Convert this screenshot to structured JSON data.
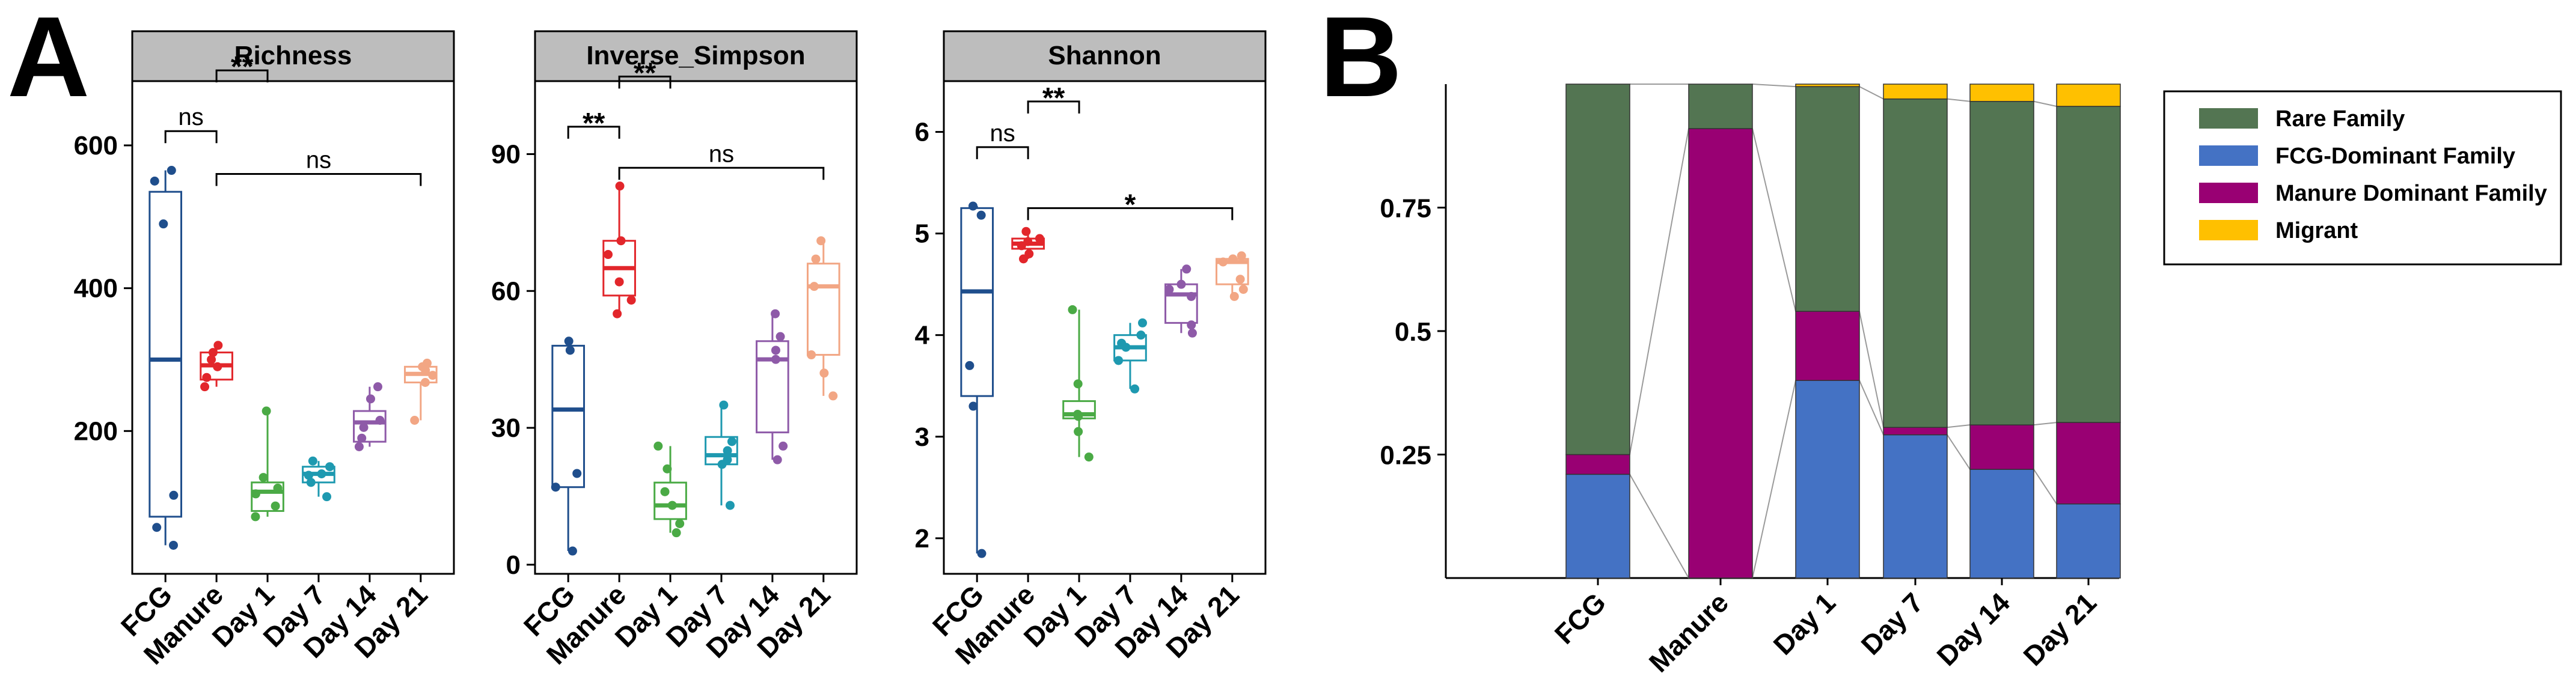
{
  "panel_letters": {
    "a": "A",
    "b": "B"
  },
  "colors": {
    "FCG": "#1f4e8c",
    "Manure": "#e2262b",
    "Day 1": "#4aaa45",
    "Day 7": "#1e99b0",
    "Day 14": "#8e5aa8",
    "Day 21": "#f2a684",
    "rare": "#537552",
    "fcg_dominant": "#4472c4",
    "manure_dominant": "#990073",
    "migrant": "#ffc000",
    "strip_fill": "#bdbdbd"
  },
  "chart_data": [
    {
      "type": "box",
      "title": "Richness",
      "categories": [
        "FCG",
        "Manure",
        "Day 1",
        "Day 7",
        "Day 14",
        "Day 21"
      ],
      "ylim": [
        0,
        690
      ],
      "yticks": [
        200,
        400,
        600
      ],
      "ytick_labels": [
        "200",
        "400",
        "600"
      ],
      "boxes": [
        {
          "q1": 80,
          "median": 300,
          "q3": 535,
          "min": 40,
          "max": 565
        },
        {
          "q1": 272,
          "median": 292,
          "q3": 310,
          "min": 262,
          "max": 320
        },
        {
          "q1": 88,
          "median": 115,
          "q3": 128,
          "min": 80,
          "max": 228
        },
        {
          "q1": 128,
          "median": 140,
          "q3": 150,
          "min": 108,
          "max": 158
        },
        {
          "q1": 185,
          "median": 212,
          "q3": 228,
          "min": 178,
          "max": 262
        },
        {
          "q1": 268,
          "median": 280,
          "q3": 290,
          "min": 215,
          "max": 295
        }
      ],
      "points": [
        [
          565,
          550,
          490,
          110,
          65,
          40
        ],
        [
          320,
          310,
          300,
          290,
          275,
          262
        ],
        [
          228,
          135,
          120,
          112,
          95,
          80
        ],
        [
          158,
          150,
          140,
          138,
          128,
          108
        ],
        [
          262,
          245,
          215,
          205,
          190,
          178
        ],
        [
          295,
          290,
          285,
          278,
          268,
          215
        ]
      ],
      "significance": [
        {
          "from": 0,
          "to": 1,
          "label": "ns",
          "y": 620
        },
        {
          "from": 1,
          "to": 2,
          "label": "**",
          "y": 705
        },
        {
          "from": 1,
          "to": 5,
          "label": "ns",
          "y": 560
        }
      ]
    },
    {
      "type": "box",
      "title": "Inverse_Simpson",
      "categories": [
        "FCG",
        "Manure",
        "Day 1",
        "Day 7",
        "Day 14",
        "Day 21"
      ],
      "ylim": [
        -2,
        106
      ],
      "yticks": [
        0,
        30,
        60,
        90
      ],
      "ytick_labels": [
        "0",
        "30",
        "60",
        "90"
      ],
      "boxes": [
        {
          "q1": 17,
          "median": 34,
          "q3": 48,
          "min": 3,
          "max": 49
        },
        {
          "q1": 59,
          "median": 65,
          "q3": 71,
          "min": 55,
          "max": 83
        },
        {
          "q1": 10,
          "median": 13,
          "q3": 18,
          "min": 7,
          "max": 26
        },
        {
          "q1": 22,
          "median": 24,
          "q3": 28,
          "min": 13,
          "max": 35
        },
        {
          "q1": 29,
          "median": 45,
          "q3": 49,
          "min": 23,
          "max": 55
        },
        {
          "q1": 46,
          "median": 61,
          "q3": 66,
          "min": 37,
          "max": 71
        }
      ],
      "points": [
        [
          49,
          47,
          20,
          17,
          3
        ],
        [
          83,
          71,
          68,
          62,
          58,
          55
        ],
        [
          26,
          21,
          16,
          13,
          9,
          7
        ],
        [
          35,
          27,
          25,
          23,
          22,
          13
        ],
        [
          55,
          50,
          47,
          45,
          26,
          23
        ],
        [
          71,
          67,
          61,
          46,
          42,
          37
        ]
      ],
      "significance": [
        {
          "from": 0,
          "to": 1,
          "label": "**",
          "y": 96
        },
        {
          "from": 1,
          "to": 2,
          "label": "**",
          "y": 107
        },
        {
          "from": 1,
          "to": 5,
          "label": "ns",
          "y": 87
        }
      ]
    },
    {
      "type": "box",
      "title": "Shannon",
      "categories": [
        "FCG",
        "Manure",
        "Day 1",
        "Day 7",
        "Day 14",
        "Day 21"
      ],
      "ylim": [
        1.65,
        6.5
      ],
      "yticks": [
        2,
        3,
        4,
        5,
        6
      ],
      "ytick_labels": [
        "2",
        "3",
        "4",
        "5",
        "6"
      ],
      "boxes": [
        {
          "q1": 3.4,
          "median": 4.43,
          "q3": 5.25,
          "min": 1.85,
          "max": 5.27
        },
        {
          "q1": 4.85,
          "median": 4.9,
          "q3": 4.95,
          "min": 4.75,
          "max": 5.02
        },
        {
          "q1": 3.18,
          "median": 3.22,
          "q3": 3.35,
          "min": 2.8,
          "max": 4.25
        },
        {
          "q1": 3.75,
          "median": 3.88,
          "q3": 4.0,
          "min": 3.47,
          "max": 4.12
        },
        {
          "q1": 4.12,
          "median": 4.4,
          "q3": 4.5,
          "min": 4.02,
          "max": 4.65
        },
        {
          "q1": 4.5,
          "median": 4.72,
          "q3": 4.75,
          "min": 4.38,
          "max": 4.78
        }
      ],
      "points": [
        [
          5.27,
          5.18,
          3.7,
          3.3,
          1.85
        ],
        [
          5.02,
          4.95,
          4.92,
          4.88,
          4.8,
          4.75
        ],
        [
          4.25,
          3.52,
          3.22,
          3.2,
          3.05,
          2.8
        ],
        [
          4.12,
          4.0,
          3.92,
          3.88,
          3.75,
          3.47
        ],
        [
          4.65,
          4.5,
          4.45,
          4.38,
          4.1,
          4.02
        ],
        [
          4.78,
          4.75,
          4.72,
          4.55,
          4.45,
          4.38
        ]
      ],
      "significance": [
        {
          "from": 0,
          "to": 1,
          "label": "ns",
          "y": 5.85
        },
        {
          "from": 1,
          "to": 2,
          "label": "**",
          "y": 6.3
        },
        {
          "from": 1,
          "to": 5,
          "label": "*",
          "y": 5.25
        }
      ]
    },
    {
      "type": "stacked-bar",
      "categories": [
        "FCG",
        "Manure",
        "Day 1",
        "Day 7",
        "Day 14",
        "Day 21"
      ],
      "ylim": [
        0,
        1
      ],
      "yticks": [
        0.25,
        0.5,
        0.75
      ],
      "ytick_labels": [
        "0.25",
        "0.5",
        "0.75"
      ],
      "series": [
        {
          "name": "FCG-Dominant Family",
          "key": "fcg_dominant",
          "values": [
            0.21,
            0.0,
            0.4,
            0.29,
            0.22,
            0.15
          ]
        },
        {
          "name": "Manure Dominant Family",
          "key": "manure_dominant",
          "values": [
            0.04,
            0.91,
            0.14,
            0.015,
            0.09,
            0.165
          ]
        },
        {
          "name": "Rare Family",
          "key": "rare",
          "values": [
            0.75,
            0.09,
            0.455,
            0.665,
            0.655,
            0.64
          ]
        },
        {
          "name": "Migrant",
          "key": "migrant",
          "values": [
            0.0,
            0.0,
            0.005,
            0.03,
            0.035,
            0.045
          ]
        }
      ],
      "legend": [
        {
          "label": "Rare Family",
          "key": "rare"
        },
        {
          "label": "FCG-Dominant Family",
          "key": "fcg_dominant"
        },
        {
          "label": "Manure Dominant Family",
          "key": "manure_dominant"
        },
        {
          "label": "Migrant",
          "key": "migrant"
        }
      ],
      "legend_position": "top-right"
    }
  ]
}
